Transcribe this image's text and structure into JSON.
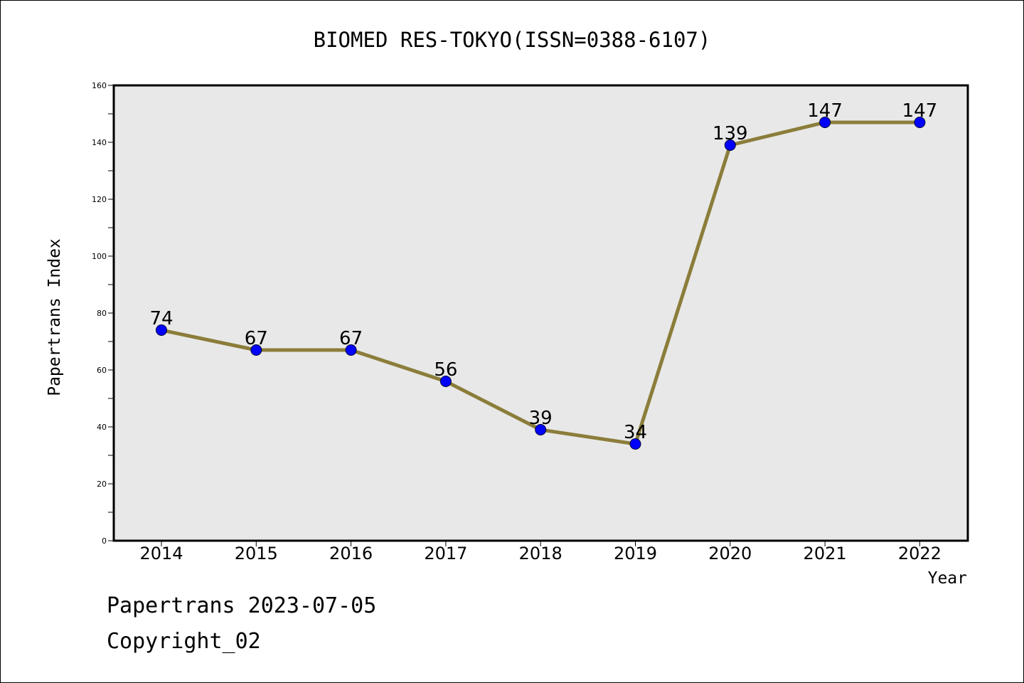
{
  "chart_data": {
    "type": "line",
    "title": "BIOMED RES-TOKYO(ISSN=0388-6107)",
    "xlabel": "Year",
    "ylabel": "Papertrans Index",
    "categories": [
      "2014",
      "2015",
      "2016",
      "2017",
      "2018",
      "2019",
      "2020",
      "2021",
      "2022"
    ],
    "values": [
      74,
      67,
      67,
      56,
      39,
      34,
      139,
      147,
      147
    ],
    "ylim": [
      0,
      160
    ],
    "yticks": [
      0,
      20,
      40,
      60,
      80,
      100,
      120,
      140,
      160
    ],
    "grid": false,
    "line_color": "#8b7d3a",
    "marker_color": "#0000ff",
    "plot_background": "#e8e8e8"
  },
  "footer": {
    "date_line": "Papertrans 2023-07-05",
    "copyright": "Copyright_02"
  }
}
